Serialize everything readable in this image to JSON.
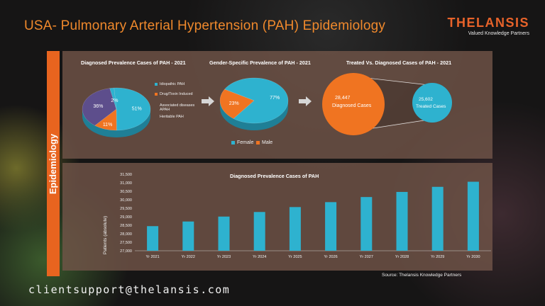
{
  "title": "USA- Pulmonary Arterial Hypertension (PAH) Epidemiology",
  "logo": {
    "name": "THELANSIS",
    "tagline": "Valued Knowledge Partners"
  },
  "sidebar_label": "Epidemiology",
  "source": "Source: Thelansis Knowledge Partners",
  "email": "clientsupport@thelansis.com",
  "colors": {
    "accent": "#e8641f",
    "blue": "#2eb2cf",
    "orange": "#f07421",
    "purple": "#5d4e8c",
    "panel": "#705448"
  },
  "chart_data": [
    {
      "type": "pie",
      "title": "Diagnosed Prevalence Cases of PAH - 2021",
      "labels": [
        "Idiopathic PAH",
        "Drug/Toxin Induced",
        "Associated diseases APAH",
        "Heritable PAH"
      ],
      "values": [
        51,
        11,
        36,
        2
      ],
      "value_labels": [
        "51%",
        "11%",
        "36%",
        "2%"
      ],
      "colors": [
        "#2eb2cf",
        "#f07421",
        "#5d4e8c",
        "#2eb2cf"
      ]
    },
    {
      "type": "pie",
      "title": "Gender-Specific Prevalence of PAH - 2021",
      "labels": [
        "Female",
        "Male"
      ],
      "values": [
        77,
        23
      ],
      "value_labels": [
        "77%",
        "23%"
      ],
      "colors": [
        "#2eb2cf",
        "#f07421"
      ]
    },
    {
      "type": "table",
      "title": "Treated Vs. Diagnosed Cases of PAH - 2021",
      "diagnosed": {
        "value": "28,447",
        "label": "Diagnosed Cases"
      },
      "treated": {
        "value": "25,602",
        "label": "Treated Cases"
      }
    },
    {
      "type": "bar",
      "title": "Diagnosed Prevalence Cases of PAH",
      "ylabel": "Patients (absolute)",
      "categories": [
        "Yr 2021",
        "Yr 2022",
        "Yr 2023",
        "Yr 2024",
        "Yr 2025",
        "Yr 2026",
        "Yr 2027",
        "Yr 2028",
        "Yr 2029",
        "Yr 2030"
      ],
      "values": [
        28447,
        28720,
        29010,
        29280,
        29570,
        29860,
        30160,
        30460,
        30760,
        31060
      ],
      "ylim": [
        27000,
        31500
      ],
      "yticks": [
        "27,000",
        "27,500",
        "28,000",
        "28,500",
        "29,000",
        "29,500",
        "30,000",
        "30,500",
        "31,000",
        "31,500"
      ],
      "color": "#2eb2cf"
    }
  ]
}
